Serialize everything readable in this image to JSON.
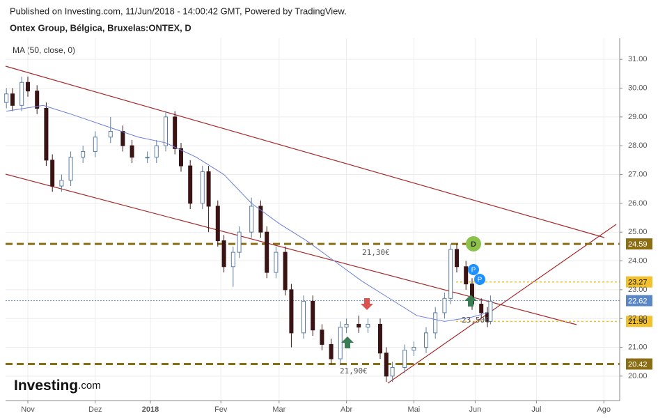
{
  "chart_data": {
    "type": "candlestick",
    "source": "Published on Investing.com, 11/Jun/2018 - 14:00:42 GMT, Powered by TradingView.",
    "title": "Ontex Group, Bélgica, Bruxelas:ONTEX, D",
    "logo": {
      "brand": "Investing",
      "suffix": ".com"
    },
    "x": [
      -7,
      -5,
      -2,
      0,
      3,
      6,
      8,
      11,
      14,
      18,
      22,
      27,
      31,
      34,
      39,
      42,
      45,
      48,
      50,
      53,
      57,
      59,
      62,
      64,
      67,
      69,
      73,
      76,
      78,
      81,
      84,
      86,
      90,
      93,
      96,
      99,
      102,
      104,
      108,
      111,
      115,
      117,
      119,
      123,
      126,
      130,
      133,
      136,
      138,
      140,
      143,
      145,
      148,
      150,
      151
    ],
    "open": [
      29.5,
      29.8,
      29.4,
      30.2,
      29.9,
      29.3,
      27.5,
      26.6,
      26.8,
      27.6,
      27.8,
      28.3,
      28.5,
      28.0,
      27.6,
      27.6,
      28.0,
      29.0,
      27.9,
      27.3,
      26.0,
      27.1,
      25.9,
      24.7,
      23.8,
      24.3,
      25.0,
      25.9,
      25.0,
      23.6,
      24.3,
      23.0,
      21.5,
      22.6,
      21.6,
      21.1,
      20.6,
      21.7,
      21.8,
      21.7,
      21.8,
      20.8,
      20.0,
      20.3,
      20.9,
      21.0,
      21.5,
      22.2,
      22.7,
      24.4,
      23.8,
      23.2,
      22.5,
      22.2,
      21.9
    ],
    "high": [
      30.0,
      30.0,
      30.4,
      30.4,
      30.1,
      29.5,
      27.7,
      27.0,
      27.8,
      28.0,
      28.5,
      29.0,
      28.7,
      28.2,
      27.8,
      28.2,
      29.2,
      29.2,
      28.1,
      27.5,
      27.3,
      27.3,
      26.1,
      24.9,
      24.5,
      25.2,
      26.2,
      26.1,
      25.2,
      24.5,
      24.5,
      23.2,
      22.8,
      22.8,
      21.8,
      21.3,
      21.9,
      22.0,
      22.1,
      22.0,
      22.0,
      21.0,
      20.5,
      21.1,
      21.2,
      21.7,
      22.4,
      22.9,
      24.6,
      24.6,
      24.0,
      23.4,
      22.7,
      22.4,
      22.8
    ],
    "low": [
      29.3,
      29.2,
      29.2,
      29.7,
      29.1,
      27.3,
      26.4,
      26.4,
      26.6,
      27.4,
      27.6,
      28.1,
      27.8,
      27.4,
      27.4,
      27.4,
      27.8,
      27.7,
      27.1,
      25.8,
      25.8,
      25.0,
      24.5,
      23.6,
      23.1,
      24.1,
      24.8,
      24.8,
      23.4,
      23.4,
      22.8,
      21.0,
      21.3,
      21.4,
      20.9,
      20.4,
      20.4,
      21.5,
      21.5,
      21.5,
      20.6,
      19.8,
      19.8,
      20.1,
      20.7,
      20.8,
      21.3,
      22.0,
      22.5,
      23.6,
      23.0,
      22.3,
      22.0,
      21.7,
      21.8
    ],
    "close": [
      29.8,
      29.4,
      30.2,
      29.9,
      29.3,
      27.5,
      26.6,
      26.8,
      27.6,
      27.8,
      28.3,
      28.5,
      28.0,
      27.6,
      27.6,
      28.0,
      29.0,
      27.9,
      27.3,
      26.0,
      27.1,
      25.9,
      24.7,
      23.8,
      24.3,
      25.0,
      25.9,
      25.0,
      23.6,
      24.3,
      23.0,
      21.5,
      22.6,
      21.6,
      21.1,
      20.6,
      21.7,
      21.8,
      21.7,
      21.8,
      20.8,
      20.0,
      20.3,
      20.9,
      21.0,
      21.5,
      22.2,
      22.7,
      24.4,
      23.8,
      23.2,
      22.5,
      22.2,
      21.9,
      22.6
    ],
    "up_color": "#ffffff",
    "up_stroke": "#5b7ca0",
    "down_color": "#3a1414",
    "ma": {
      "name": "MA (50, close, 0)",
      "color": "#6b7fd7",
      "x": [
        -7,
        5,
        14,
        25,
        36,
        45,
        55,
        64,
        73,
        82,
        91,
        100,
        109,
        118,
        127,
        136,
        145,
        150
      ],
      "values": [
        29.2,
        29.4,
        29.1,
        28.7,
        28.3,
        28.1,
        27.6,
        27.0,
        26.0,
        25.3,
        24.7,
        24.0,
        23.3,
        22.7,
        22.1,
        21.9,
        22.05,
        22.2
      ]
    },
    "levels": [
      {
        "value": 24.59,
        "color": "#8b6d14",
        "style": "dashed"
      },
      {
        "value": 23.27,
        "color": "#f2c12e",
        "style": "dotted"
      },
      {
        "value": 22.62,
        "color": "#5b86c5",
        "style": "thin"
      },
      {
        "value": {
          "value": 21.9,
          "label": "21.90"
        },
        "color": "#f2c12e",
        "style": "dotted"
      },
      {
        "value": 20.42,
        "color": "#8b6d14",
        "style": "dashed"
      }
    ],
    "annotations": [
      "21,30€",
      "23,50€",
      "21,90€"
    ],
    "markers": [
      "D",
      "P",
      "P"
    ],
    "xlim": [
      -7.27,
      193.18
    ],
    "xticks": [
      {
        "value": 0,
        "label": "Nov"
      },
      {
        "value": 22,
        "label": "Dez"
      },
      {
        "value": 40,
        "label": "2018"
      },
      {
        "value": 63,
        "label": "Fev"
      },
      {
        "value": 82,
        "label": "Mar"
      },
      {
        "value": 104,
        "label": "Abr"
      },
      {
        "value": 126,
        "label": "Mai"
      },
      {
        "value": 146,
        "label": "Jun"
      },
      {
        "value": 166,
        "label": "Jul"
      },
      {
        "value": 188,
        "label": "Ago"
      }
    ],
    "ylim": [
      19.15,
      31.73
    ],
    "yticks": [
      {
        "value": 20,
        "label": "20.00"
      },
      {
        "value": 21,
        "label": "21.00"
      },
      {
        "value": 22,
        "label": "22.00"
      },
      {
        "value": 23,
        "label": "23.00"
      },
      {
        "value": 24,
        "label": "24.00"
      },
      {
        "value": 25,
        "label": "25.00"
      },
      {
        "value": 26,
        "label": "26.00"
      },
      {
        "value": 27,
        "label": "27.00"
      },
      {
        "value": 28,
        "label": "28.00"
      },
      {
        "value": 29,
        "label": "29.00"
      },
      {
        "value": 30,
        "label": "30.00"
      },
      {
        "value": 31,
        "label": "31.00"
      }
    ],
    "grid": true
  }
}
